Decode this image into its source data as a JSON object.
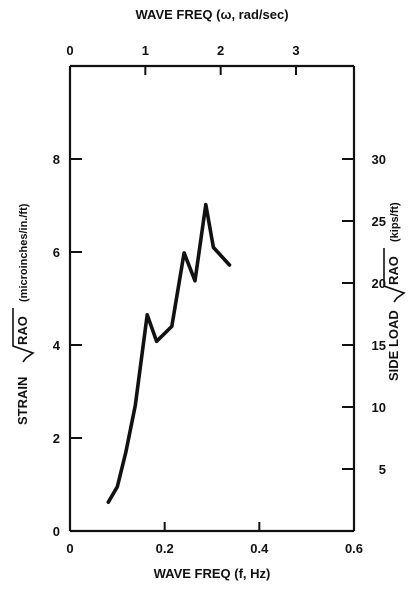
{
  "chart_data": {
    "type": "line",
    "title": "",
    "xlabel": "WAVE FREQ (f, Hz)",
    "xlim": [
      0,
      0.6
    ],
    "x_ticks": [
      0,
      0.2,
      0.4,
      0.6
    ],
    "x_tick_labels": [
      "0",
      "0.2",
      "0.4",
      "0.6"
    ],
    "ylabel_prefix": "STRAIN",
    "ylabel_radical": "RAO",
    "ylabel_unit": "(microinches/in./ft)",
    "ylim": [
      0,
      10
    ],
    "y_ticks": [
      0,
      2,
      4,
      6,
      8
    ],
    "y_tick_labels": [
      "0",
      "2",
      "4",
      "6",
      "8"
    ],
    "top_axis": {
      "label_prefix": "WAVE FREQ (",
      "label_symbol": "ω",
      "label_suffix": ", rad/sec)",
      "ticks": [
        0,
        1,
        2,
        3
      ],
      "tick_labels": [
        "0",
        "1",
        "2",
        "3"
      ],
      "rad_per_hz": 6.2832
    },
    "right_axis": {
      "label_prefix": "SIDE LOAD",
      "label_radical": "RAO",
      "label_unit": "(kips/ft)",
      "ticks": [
        5,
        10,
        15,
        20,
        25,
        30
      ],
      "tick_labels": [
        "5",
        "10",
        "15",
        "20",
        "25",
        "30"
      ],
      "ylim": [
        0,
        37.5
      ]
    },
    "legend": "none",
    "grid": false,
    "series": [
      {
        "x": [
          0.081,
          0.1,
          0.118,
          0.138,
          0.163,
          0.183,
          0.215,
          0.241,
          0.264,
          0.287,
          0.303,
          0.337
        ],
        "y": [
          0.62,
          0.95,
          1.7,
          2.7,
          4.65,
          4.08,
          4.4,
          5.98,
          5.38,
          7.02,
          6.1,
          5.72
        ]
      }
    ]
  }
}
